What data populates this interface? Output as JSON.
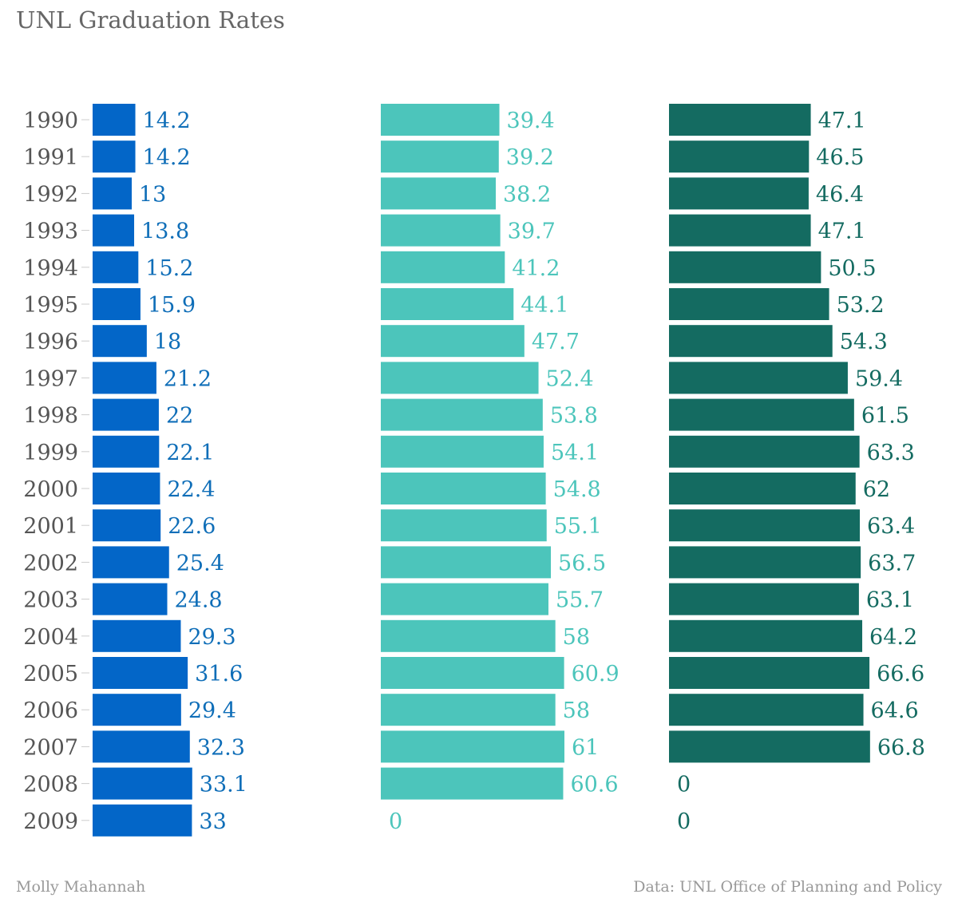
{
  "title": "UNL Graduation Rates",
  "credit": "Molly Mahannah",
  "source": "Data: UNL Office of Planning and Policy",
  "chart_data": {
    "type": "bar",
    "orientation": "horizontal",
    "title": "UNL Graduation Rates",
    "categories": [
      "1990",
      "1991",
      "1992",
      "1993",
      "1994",
      "1995",
      "1996",
      "1997",
      "1998",
      "1999",
      "2000",
      "2001",
      "2002",
      "2003",
      "2004",
      "2005",
      "2006",
      "2007",
      "2008",
      "2009"
    ],
    "series": [
      {
        "color": "#0366c8",
        "values": [
          14.2,
          14.2,
          13,
          13.8,
          15.2,
          15.9,
          18,
          21.2,
          22,
          22.1,
          22.4,
          22.6,
          25.4,
          24.8,
          29.3,
          31.6,
          29.4,
          32.3,
          33.1,
          33
        ]
      },
      {
        "color": "#4cc5bb",
        "values": [
          39.4,
          39.2,
          38.2,
          39.7,
          41.2,
          44.1,
          47.7,
          52.4,
          53.8,
          54.1,
          54.8,
          55.1,
          56.5,
          55.7,
          58,
          60.9,
          58,
          61,
          60.6,
          0
        ]
      },
      {
        "color": "#146b61",
        "values": [
          47.1,
          46.5,
          46.4,
          47.1,
          50.5,
          53.2,
          54.3,
          59.4,
          61.5,
          63.3,
          62,
          63.4,
          63.7,
          63.1,
          64.2,
          66.6,
          64.6,
          66.8,
          0,
          0
        ]
      }
    ],
    "label_colors": [
      "#0f6eb8",
      "#4cc5bb",
      "#146b61"
    ]
  }
}
